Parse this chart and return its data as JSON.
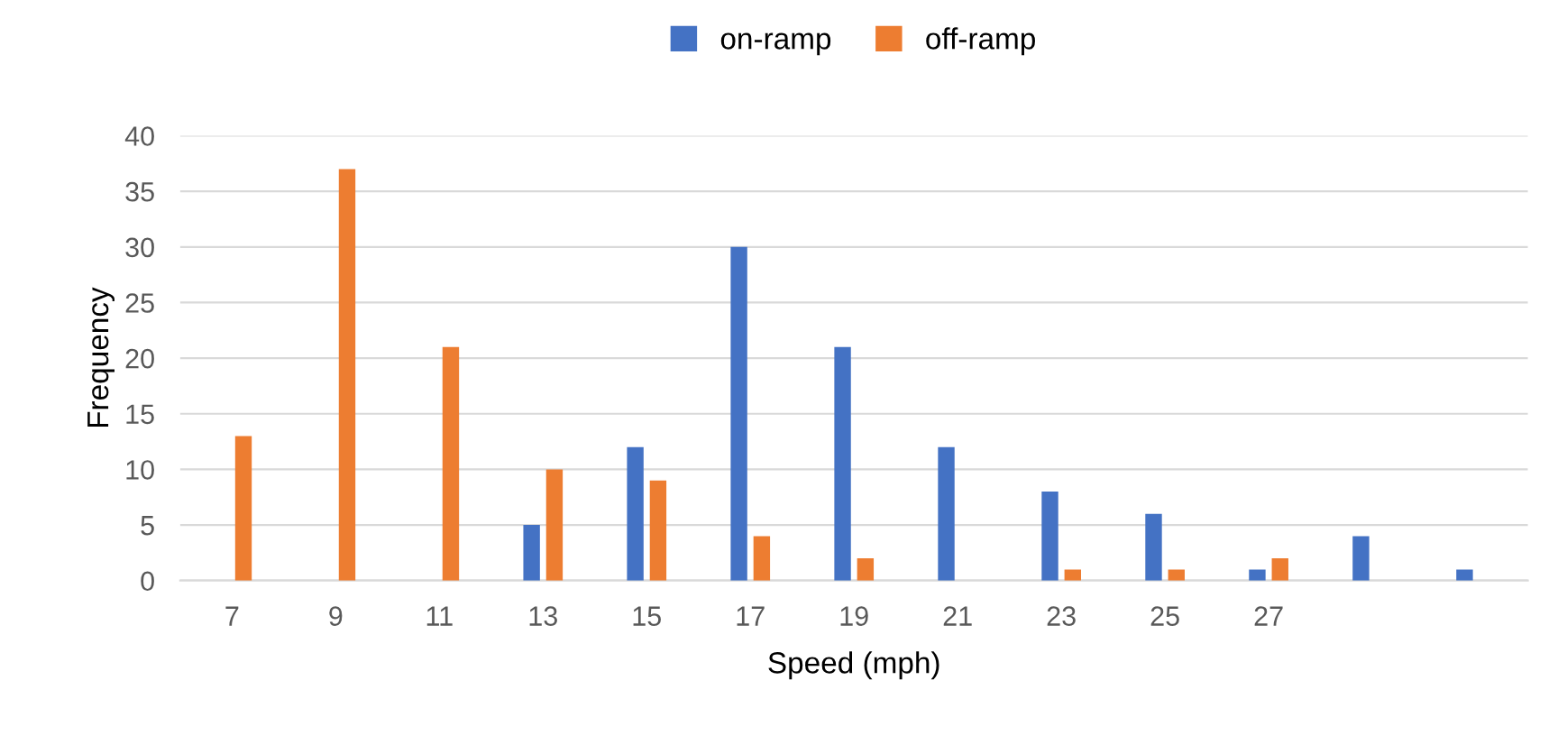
{
  "chart_data": {
    "type": "bar",
    "xlabel": "Speed (mph)",
    "ylabel": "Frequency",
    "categories": [
      "7",
      "9",
      "11",
      "13",
      "15",
      "17",
      "19",
      "21",
      "23",
      "25",
      "27",
      null,
      null
    ],
    "series": [
      {
        "name": "on-ramp",
        "color": "#4472c4",
        "values": [
          null,
          null,
          null,
          5,
          12,
          30,
          21,
          12,
          8,
          6,
          1,
          4,
          1
        ]
      },
      {
        "name": "off-ramp",
        "color": "#ed7d31",
        "values": [
          13,
          37,
          21,
          10,
          9,
          4,
          2,
          null,
          1,
          1,
          2,
          null,
          null
        ]
      }
    ],
    "ylim": [
      0,
      40
    ],
    "yticks": [
      0,
      5,
      10,
      15,
      20,
      25,
      30,
      35,
      40
    ],
    "grid": "y",
    "legend": "top"
  }
}
